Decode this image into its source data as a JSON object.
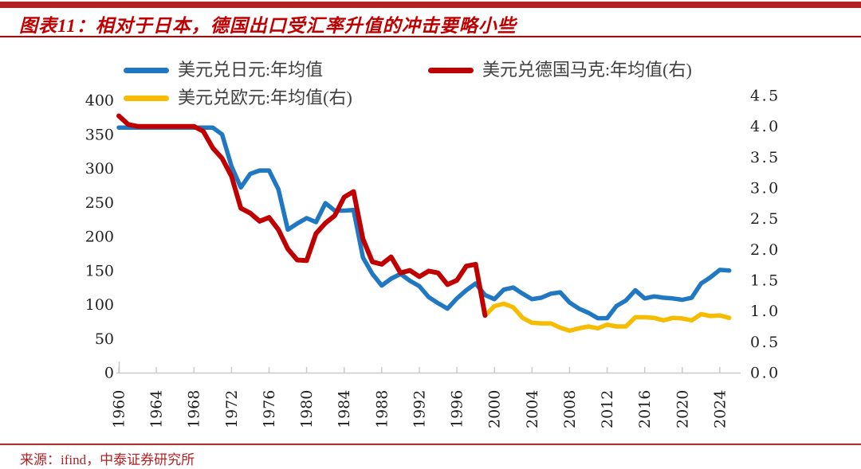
{
  "header": {
    "title": "图表11：相对于日本，德国出口受汇率升值的冲击要略小些"
  },
  "footer": {
    "source": "来源：ifind，中泰证券研究所"
  },
  "colors": {
    "accent_red": "#C00000",
    "top_bar": "#B22222",
    "axis_line": "#C9C9C9",
    "tick_label": "#1F1F1F",
    "legend_text": "#3F3F3F",
    "source_text": "#B22222"
  },
  "chart_data": {
    "type": "line",
    "title": "相对于日本，德国出口受汇率升值的冲击要略小些",
    "grid": false,
    "legend_position": "top",
    "x_axis": {
      "start_year": 1960,
      "end_year": 2025,
      "tick_years": [
        1960,
        1964,
        1968,
        1972,
        1976,
        1980,
        1984,
        1988,
        1992,
        1996,
        2000,
        2004,
        2008,
        2012,
        2016,
        2020,
        2024
      ],
      "tick_labels": [
        "1960",
        "1964",
        "1968",
        "1972",
        "1976",
        "1980",
        "1984",
        "1988",
        "1992",
        "1996",
        "2000",
        "2004",
        "2008",
        "2012",
        "2016",
        "2020",
        "2024"
      ]
    },
    "left_axis": {
      "min": 0,
      "max": 400,
      "tick_values": [
        400,
        350,
        300,
        250,
        200,
        150,
        100,
        50,
        0
      ],
      "tick_labels": [
        "400",
        "350",
        "300",
        "250",
        "200",
        "150",
        "100",
        "50",
        "0"
      ]
    },
    "right_axis": {
      "min": 0,
      "max": 4.5,
      "tick_values": [
        4.5,
        4.0,
        3.5,
        3.0,
        2.5,
        2.0,
        1.5,
        1.0,
        0.5,
        0.0
      ],
      "tick_labels": [
        "4.5",
        "4.0",
        "3.5",
        "3.0",
        "2.5",
        "2.0",
        "1.5",
        "1.0",
        "0.5",
        "0.0"
      ]
    },
    "series": [
      {
        "name": "美元兑日元:年均值",
        "axis": "left",
        "color": "#1F78C1",
        "stroke_width": 5.5,
        "start_year": 1960,
        "values": [
          360,
          360,
          360,
          360,
          360,
          360,
          360,
          360,
          360,
          360,
          360,
          350,
          303,
          272,
          292,
          297,
          297,
          269,
          210,
          219,
          227,
          221,
          249,
          238,
          238,
          239,
          169,
          145,
          128,
          138,
          145,
          135,
          127,
          111,
          102,
          94,
          109,
          121,
          131,
          114,
          108,
          122,
          125,
          116,
          108,
          110,
          116,
          118,
          103,
          94,
          88,
          80,
          80,
          98,
          106,
          121,
          109,
          112,
          110,
          109,
          107,
          110,
          131,
          140,
          151,
          150
        ]
      },
      {
        "name": "美元兑德国马克:年均值(右)",
        "axis": "right",
        "color": "#C00000",
        "stroke_width": 6,
        "start_year": 1960,
        "values": [
          4.17,
          4.03,
          4.0,
          4.0,
          4.0,
          4.0,
          4.0,
          4.0,
          4.0,
          3.92,
          3.65,
          3.48,
          3.19,
          2.67,
          2.59,
          2.46,
          2.52,
          2.32,
          2.01,
          1.83,
          1.82,
          2.26,
          2.43,
          2.55,
          2.85,
          2.94,
          2.17,
          1.8,
          1.76,
          1.88,
          1.62,
          1.66,
          1.56,
          1.65,
          1.62,
          1.43,
          1.5,
          1.73,
          1.76,
          0.93
        ]
      },
      {
        "name": "美元兑欧元:年均值(右)",
        "axis": "right",
        "color": "#F5BC00",
        "stroke_width": 5.5,
        "start_year": 1999,
        "values": [
          0.93,
          1.08,
          1.12,
          1.06,
          0.89,
          0.81,
          0.8,
          0.8,
          0.73,
          0.68,
          0.72,
          0.75,
          0.72,
          0.78,
          0.75,
          0.75,
          0.9,
          0.9,
          0.89,
          0.85,
          0.89,
          0.88,
          0.85,
          0.95,
          0.92,
          0.93,
          0.89
        ]
      }
    ]
  }
}
